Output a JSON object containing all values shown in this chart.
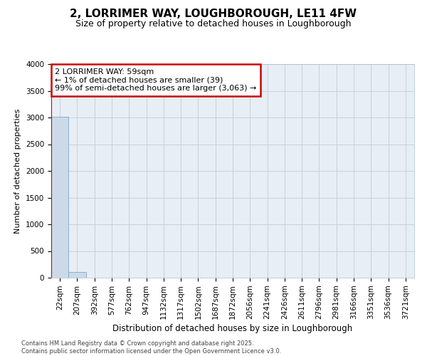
{
  "title": "2, LORRIMER WAY, LOUGHBOROUGH, LE11 4FW",
  "subtitle": "Size of property relative to detached houses in Loughborough",
  "xlabel": "Distribution of detached houses by size in Loughborough",
  "ylabel": "Number of detached properties",
  "footer_line1": "Contains HM Land Registry data © Crown copyright and database right 2025.",
  "footer_line2": "Contains public sector information licensed under the Open Government Licence v3.0.",
  "annotation_line1": "2 LORRIMER WAY: 59sqm",
  "annotation_line2": "← 1% of detached houses are smaller (39)",
  "annotation_line3": "99% of semi-detached houses are larger (3,063) →",
  "bar_labels": [
    "22sqm",
    "207sqm",
    "392sqm",
    "577sqm",
    "762sqm",
    "947sqm",
    "1132sqm",
    "1317sqm",
    "1502sqm",
    "1687sqm",
    "1872sqm",
    "2056sqm",
    "2241sqm",
    "2426sqm",
    "2611sqm",
    "2796sqm",
    "2981sqm",
    "3166sqm",
    "3351sqm",
    "3536sqm",
    "3721sqm"
  ],
  "bar_values": [
    3010,
    105,
    3,
    1,
    0,
    0,
    0,
    0,
    0,
    0,
    0,
    0,
    0,
    0,
    0,
    0,
    0,
    0,
    0,
    0,
    0
  ],
  "bar_color": "#ccd9e8",
  "bar_edge_color": "#7aaac8",
  "grid_color": "#c8d0dc",
  "bg_color": "#e8eef5",
  "annotation_box_color": "#cc0000",
  "vline_color": "#cc0000",
  "ylim": [
    0,
    4000
  ],
  "yticks": [
    0,
    500,
    1000,
    1500,
    2000,
    2500,
    3000,
    3500,
    4000
  ],
  "title_fontsize": 11,
  "subtitle_fontsize": 9,
  "ylabel_fontsize": 8,
  "xlabel_fontsize": 8.5,
  "tick_fontsize": 7.5,
  "footer_fontsize": 6,
  "annotation_fontsize": 8
}
